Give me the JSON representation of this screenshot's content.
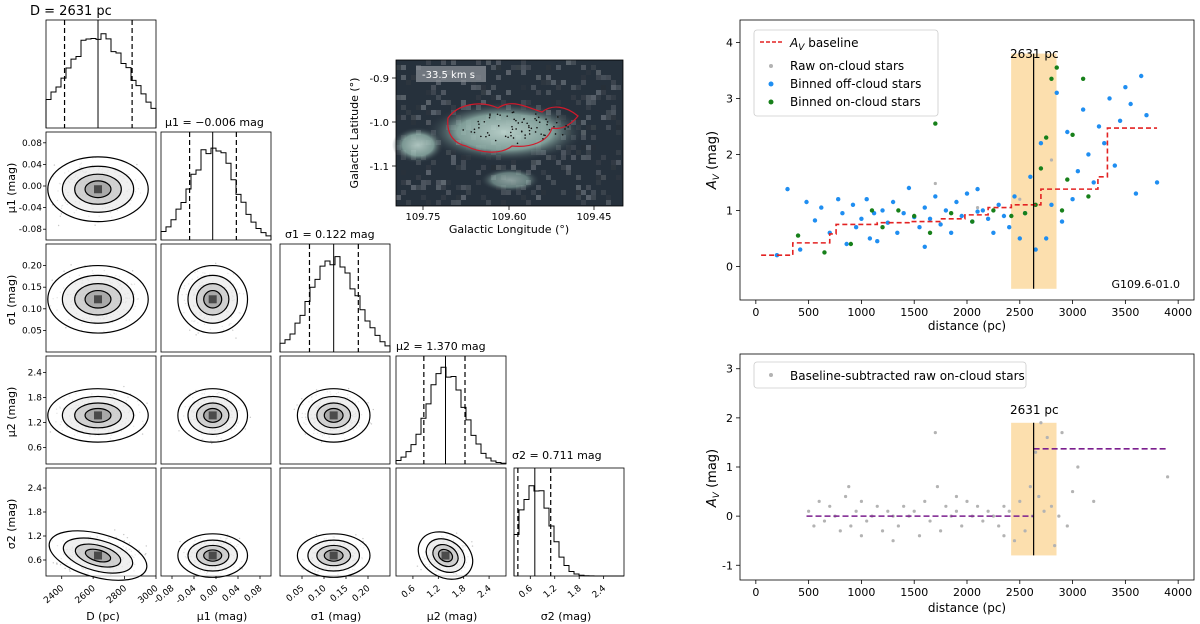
{
  "figure": {
    "colors": {
      "baseline": "#e32222",
      "raw": "#b3b3b3",
      "offcloud": "#1f8ef1",
      "oncloud": "#17801a",
      "band": "#fbd9a0",
      "purple": "#7b1e8e",
      "map_contour": "#d11a2b"
    },
    "map": {
      "velocity_label": "-33.5 km s",
      "xlabel": "Galactic Longitude (°)",
      "ylabel": "Galactic Latitude (°)",
      "xticks": [
        "109.75",
        "109.60",
        "109.45"
      ],
      "yticks": [
        "-0.9",
        "-1.0",
        "-1.1"
      ]
    }
  },
  "chart_data": [
    {
      "type": "corner",
      "panel_titles": {
        "D": "D = 2631 pc",
        "mu1": "μ1 = −0.006 mag",
        "sigma1": "σ1 = 0.122 mag",
        "mu2": "μ2 = 1.370 mag",
        "sigma2": "σ2 = 0.711 mag"
      },
      "parameters": [
        {
          "key": "D",
          "axis_label": "D (pc)",
          "median": 2631,
          "lower_err": 213,
          "upper_err": 217,
          "ticks": [
            "2400",
            "2600",
            "2800",
            "3000"
          ],
          "range": [
            2300,
            3000
          ]
        },
        {
          "key": "mu1",
          "axis_label": "μ1 (mag)",
          "median": -0.006,
          "lower_err": 0.042,
          "upper_err": 0.043,
          "ticks": [
            "-0.08",
            "-0.04",
            "0.00",
            "0.04",
            "0.08"
          ],
          "range": [
            -0.1,
            0.1
          ]
        },
        {
          "key": "sigma1",
          "axis_label": "σ1 (mag)",
          "median": 0.122,
          "lower_err": 0.055,
          "upper_err": 0.056,
          "ticks": [
            "0.05",
            "0.10",
            "0.15",
            "0.20"
          ],
          "range": [
            0.0,
            0.25
          ]
        },
        {
          "key": "mu2",
          "axis_label": "μ2 (mag)",
          "median": 1.37,
          "lower_err": 0.512,
          "upper_err": 0.461,
          "ticks": [
            "0.6",
            "1.2",
            "1.8",
            "2.4"
          ],
          "range": [
            0.2,
            2.8
          ]
        },
        {
          "key": "sigma2",
          "axis_label": "σ2 (mag)",
          "median": 0.711,
          "lower_err": 0.416,
          "upper_err": 0.39,
          "ticks": [
            "0.6",
            "1.2",
            "1.8",
            "2.4"
          ],
          "range": [
            0.2,
            2.9
          ]
        }
      ]
    },
    {
      "type": "scatter",
      "xlabel": "distance (pc)",
      "ylabel": "A_V (mag)",
      "xlim": [
        -150,
        4150
      ],
      "ylim": [
        -0.6,
        4.4
      ],
      "xticks": [
        0,
        500,
        1000,
        1500,
        2000,
        2500,
        3000,
        3500,
        4000
      ],
      "yticks": [
        0,
        1,
        2,
        3,
        4
      ],
      "legend": {
        "position": "top-left",
        "entries": [
          "A_V baseline",
          "Raw on-cloud stars",
          "Binned off-cloud stars",
          "Binned on-cloud stars"
        ]
      },
      "distance_label": "2631 pc",
      "distance": 2631,
      "band": [
        2418,
        2848
      ],
      "cloud_name": "G109.6-01.0",
      "baseline": [
        [
          50,
          0.2
        ],
        [
          350,
          0.2
        ],
        [
          350,
          0.42
        ],
        [
          700,
          0.42
        ],
        [
          700,
          0.58
        ],
        [
          760,
          0.58
        ],
        [
          760,
          0.75
        ],
        [
          1150,
          0.75
        ],
        [
          1150,
          0.78
        ],
        [
          1450,
          0.78
        ],
        [
          1450,
          0.8
        ],
        [
          1750,
          0.8
        ],
        [
          1750,
          0.85
        ],
        [
          1980,
          0.85
        ],
        [
          1980,
          0.92
        ],
        [
          2200,
          0.92
        ],
        [
          2200,
          1.05
        ],
        [
          2420,
          1.05
        ],
        [
          2420,
          1.1
        ],
        [
          2700,
          1.1
        ],
        [
          2700,
          1.38
        ],
        [
          3240,
          1.38
        ],
        [
          3240,
          1.6
        ],
        [
          3330,
          1.6
        ],
        [
          3330,
          2.47
        ],
        [
          3800,
          2.47
        ]
      ],
      "raw_on_cloud": [
        [
          1700,
          1.48
        ],
        [
          2100,
          1.05
        ],
        [
          2500,
          1.2
        ],
        [
          2800,
          1.9
        ]
      ],
      "binned_off_cloud": [
        [
          300,
          1.38
        ],
        [
          480,
          1.15
        ],
        [
          560,
          0.82
        ],
        [
          620,
          1.05
        ],
        [
          700,
          0.6
        ],
        [
          780,
          1.2
        ],
        [
          820,
          0.95
        ],
        [
          860,
          0.4
        ],
        [
          920,
          1.1
        ],
        [
          950,
          0.7
        ],
        [
          1000,
          0.85
        ],
        [
          1050,
          1.2
        ],
        [
          1080,
          0.5
        ],
        [
          1120,
          0.95
        ],
        [
          1150,
          0.45
        ],
        [
          1200,
          1.0
        ],
        [
          1250,
          0.78
        ],
        [
          1300,
          1.15
        ],
        [
          1340,
          0.6
        ],
        [
          1400,
          0.95
        ],
        [
          1450,
          1.4
        ],
        [
          1500,
          0.88
        ],
        [
          1550,
          0.7
        ],
        [
          1600,
          1.05
        ],
        [
          1650,
          0.85
        ],
        [
          1700,
          1.25
        ],
        [
          1750,
          0.75
        ],
        [
          1800,
          1.0
        ],
        [
          1850,
          0.6
        ],
        [
          1900,
          1.15
        ],
        [
          1950,
          0.9
        ],
        [
          2000,
          1.3
        ],
        [
          2050,
          0.8
        ],
        [
          2100,
          0.98
        ],
        [
          2150,
          1.0
        ],
        [
          2200,
          0.85
        ],
        [
          2250,
          0.6
        ],
        [
          2300,
          1.1
        ],
        [
          2350,
          0.9
        ],
        [
          2400,
          0.7
        ],
        [
          2450,
          1.25
        ],
        [
          2500,
          0.5
        ],
        [
          2550,
          0.95
        ],
        [
          2600,
          1.6
        ],
        [
          2650,
          0.3
        ],
        [
          2700,
          2.2
        ],
        [
          2750,
          0.5
        ],
        [
          2800,
          1.1
        ],
        [
          2850,
          3.1
        ],
        [
          2900,
          0.8
        ],
        [
          2950,
          2.4
        ],
        [
          3000,
          1.2
        ],
        [
          3050,
          1.7
        ],
        [
          3100,
          2.8
        ],
        [
          3150,
          2.0
        ],
        [
          3200,
          1.5
        ],
        [
          3250,
          2.5
        ],
        [
          3300,
          2.2
        ],
        [
          3350,
          3.0
        ],
        [
          3400,
          1.8
        ],
        [
          3450,
          2.6
        ],
        [
          3500,
          3.2
        ],
        [
          3550,
          2.9
        ],
        [
          3600,
          1.3
        ],
        [
          3650,
          3.4
        ],
        [
          3700,
          2.7
        ],
        [
          3800,
          1.5
        ],
        [
          200,
          0.2
        ],
        [
          420,
          0.3
        ],
        [
          1600,
          0.35
        ],
        [
          2100,
          1.38
        ]
      ],
      "binned_on_cloud": [
        [
          400,
          0.55
        ],
        [
          650,
          0.25
        ],
        [
          900,
          0.4
        ],
        [
          1100,
          1.0
        ],
        [
          1200,
          0.7
        ],
        [
          1350,
          1.0
        ],
        [
          1500,
          0.9
        ],
        [
          1650,
          0.6
        ],
        [
          1700,
          2.55
        ],
        [
          1850,
          0.95
        ],
        [
          2050,
          0.8
        ],
        [
          2250,
          1.0
        ],
        [
          2420,
          0.9
        ],
        [
          2550,
          0.95
        ],
        [
          2650,
          1.1
        ],
        [
          2700,
          1.75
        ],
        [
          2750,
          2.3
        ],
        [
          2800,
          3.35
        ],
        [
          2850,
          3.55
        ],
        [
          2900,
          1.0
        ],
        [
          2950,
          1.55
        ],
        [
          3000,
          2.35
        ],
        [
          3100,
          3.35
        ],
        [
          3150,
          1.25
        ]
      ]
    },
    {
      "type": "scatter",
      "xlabel": "distance (pc)",
      "ylabel": "A_V (mag)",
      "xlim": [
        -150,
        4150
      ],
      "ylim": [
        -1.3,
        3.3
      ],
      "xticks": [
        0,
        500,
        1000,
        1500,
        2000,
        2500,
        3000,
        3500,
        4000
      ],
      "yticks": [
        -1,
        0,
        1,
        2,
        3
      ],
      "legend": {
        "position": "top-left",
        "entries": [
          "Baseline-subtracted raw on-cloud stars"
        ]
      },
      "distance_label": "2631 pc",
      "distance": 2631,
      "band": [
        2418,
        2848
      ],
      "fit_segments": [
        [
          [
            480,
            0.0
          ],
          [
            2631,
            0.0
          ]
        ],
        [
          [
            2631,
            1.37
          ],
          [
            3900,
            1.37
          ]
        ]
      ],
      "points": [
        [
          500,
          0.1
        ],
        [
          550,
          -0.2
        ],
        [
          600,
          0.3
        ],
        [
          650,
          -0.1
        ],
        [
          700,
          0.2
        ],
        [
          750,
          0.0
        ],
        [
          800,
          -0.3
        ],
        [
          850,
          0.4
        ],
        [
          880,
          0.6
        ],
        [
          900,
          -0.2
        ],
        [
          950,
          0.1
        ],
        [
          1000,
          0.3
        ],
        [
          1050,
          -0.1
        ],
        [
          1100,
          0.0
        ],
        [
          1150,
          0.2
        ],
        [
          1200,
          -0.3
        ],
        [
          1250,
          0.1
        ],
        [
          1300,
          0.0
        ],
        [
          1350,
          -0.2
        ],
        [
          1400,
          0.2
        ],
        [
          1450,
          0.0
        ],
        [
          1500,
          0.1
        ],
        [
          1550,
          -0.4
        ],
        [
          1600,
          0.3
        ],
        [
          1650,
          -0.1
        ],
        [
          1700,
          1.7
        ],
        [
          1720,
          0.6
        ],
        [
          1750,
          -0.3
        ],
        [
          1800,
          0.2
        ],
        [
          1850,
          0.0
        ],
        [
          1900,
          0.1
        ],
        [
          1950,
          -0.2
        ],
        [
          2000,
          0.3
        ],
        [
          2050,
          0.0
        ],
        [
          2100,
          0.2
        ],
        [
          2150,
          -0.1
        ],
        [
          2200,
          0.1
        ],
        [
          2250,
          0.0
        ],
        [
          2300,
          -0.2
        ],
        [
          2350,
          0.2
        ],
        [
          2400,
          0.1
        ],
        [
          2450,
          -0.5
        ],
        [
          2500,
          0.3
        ],
        [
          2550,
          -0.3
        ],
        [
          2600,
          0.6
        ],
        [
          2620,
          0.0
        ],
        [
          2650,
          1.3
        ],
        [
          2680,
          0.4
        ],
        [
          2700,
          1.9
        ],
        [
          2730,
          0.1
        ],
        [
          2760,
          1.6
        ],
        [
          2800,
          0.2
        ],
        [
          2830,
          -0.6
        ],
        [
          2870,
          0.0
        ],
        [
          2900,
          1.7
        ],
        [
          2950,
          -0.2
        ],
        [
          3000,
          0.5
        ],
        [
          3050,
          1.0
        ],
        [
          3200,
          0.3
        ],
        [
          3900,
          0.8
        ],
        [
          1300,
          -0.5
        ],
        [
          1900,
          0.4
        ],
        [
          2350,
          -0.4
        ],
        [
          1000,
          -0.4
        ]
      ]
    }
  ]
}
